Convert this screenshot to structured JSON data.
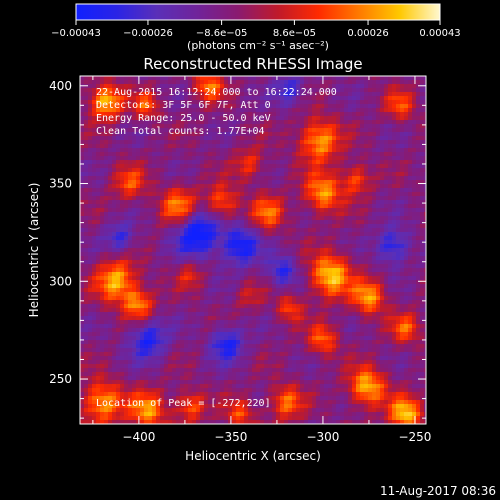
{
  "chart_data": {
    "type": "heatmap",
    "title": "Reconstructed RHESSI Image",
    "xlabel": "Heliocentric X (arcsec)",
    "ylabel": "Heliocentric Y (arcsec)",
    "xlim": [
      -432,
      -244
    ],
    "ylim": [
      227,
      405
    ],
    "x_ticks": [
      -400,
      -350,
      -300,
      -250
    ],
    "x_tick_labels": [
      "−400",
      "−350",
      "−300",
      "−250"
    ],
    "y_ticks": [
      250,
      300,
      350,
      400
    ],
    "y_tick_labels": [
      "250",
      "300",
      "350",
      "400"
    ],
    "colorbar": {
      "label": "(photons cm⁻² s⁻¹ asec⁻²)",
      "range": [
        -0.00043,
        0.00043
      ],
      "ticks": [
        -0.00043,
        -0.00026,
        -8.6e-05,
        8.6e-05,
        0.00026,
        0.00043
      ],
      "tick_labels": [
        "−0.00043",
        "−0.00026",
        "−8.6e−05",
        "8.6e−05",
        "0.00026",
        "0.00043"
      ],
      "colors": [
        "#1020ff",
        "#2a24e6",
        "#5a2fb8",
        "#70239a",
        "#8a1a70",
        "#c01a2a",
        "#ff2a00",
        "#ff7a00",
        "#ffc800",
        "#fff8d0"
      ]
    },
    "annotations": [
      "22-Aug-2015 16:12:24.000 to 16:22:24.000",
      "Detectors: 3F 5F 6F 7F, Att 0",
      "Energy Range: 25.0 - 50.0 keV",
      "Clean     Total counts: 1.77E+04"
    ],
    "peak_label": "Location of Peak = [-272,220]",
    "hotspots": [
      {
        "x": -412,
        "y": 300,
        "v": 0.0004,
        "r": 11
      },
      {
        "x": -400,
        "y": 288,
        "v": 0.00032,
        "r": 8
      },
      {
        "x": -420,
        "y": 238,
        "v": 0.00038,
        "r": 11
      },
      {
        "x": -395,
        "y": 234,
        "v": 0.00035,
        "r": 10
      },
      {
        "x": -372,
        "y": 236,
        "v": 0.00028,
        "r": 8
      },
      {
        "x": -418,
        "y": 392,
        "v": 0.00042,
        "r": 9
      },
      {
        "x": -396,
        "y": 390,
        "v": 0.00026,
        "r": 7
      },
      {
        "x": -362,
        "y": 400,
        "v": 0.0003,
        "r": 8
      },
      {
        "x": -405,
        "y": 350,
        "v": 0.00024,
        "r": 9
      },
      {
        "x": -378,
        "y": 338,
        "v": 0.00034,
        "r": 10
      },
      {
        "x": -355,
        "y": 340,
        "v": 0.0003,
        "r": 9
      },
      {
        "x": -330,
        "y": 335,
        "v": 0.00028,
        "r": 9
      },
      {
        "x": -340,
        "y": 360,
        "v": 0.00022,
        "r": 8
      },
      {
        "x": -302,
        "y": 372,
        "v": 0.00038,
        "r": 11
      },
      {
        "x": -300,
        "y": 345,
        "v": 0.00036,
        "r": 10
      },
      {
        "x": -282,
        "y": 352,
        "v": 0.00026,
        "r": 8
      },
      {
        "x": -296,
        "y": 303,
        "v": 0.00043,
        "r": 11
      },
      {
        "x": -275,
        "y": 292,
        "v": 0.00036,
        "r": 9
      },
      {
        "x": -318,
        "y": 286,
        "v": 0.00024,
        "r": 7
      },
      {
        "x": -300,
        "y": 270,
        "v": 0.00028,
        "r": 8
      },
      {
        "x": -276,
        "y": 246,
        "v": 0.0004,
        "r": 10
      },
      {
        "x": -255,
        "y": 232,
        "v": 0.00042,
        "r": 9
      },
      {
        "x": -320,
        "y": 238,
        "v": 0.0003,
        "r": 9
      },
      {
        "x": -345,
        "y": 232,
        "v": 0.00024,
        "r": 8
      },
      {
        "x": -255,
        "y": 276,
        "v": 0.00026,
        "r": 8
      },
      {
        "x": -258,
        "y": 390,
        "v": 0.00024,
        "r": 8
      },
      {
        "x": -372,
        "y": 303,
        "v": 0.00018,
        "r": 7
      },
      {
        "x": -340,
        "y": 292,
        "v": 0.00014,
        "r": 7
      }
    ],
    "coldspots": [
      {
        "x": -368,
        "y": 325,
        "v": -0.0004,
        "r": 12
      },
      {
        "x": -345,
        "y": 318,
        "v": -0.00034,
        "r": 10
      },
      {
        "x": -395,
        "y": 270,
        "v": -0.0003,
        "r": 10
      },
      {
        "x": -352,
        "y": 268,
        "v": -0.0003,
        "r": 9
      },
      {
        "x": -322,
        "y": 305,
        "v": -0.00026,
        "r": 8
      },
      {
        "x": -262,
        "y": 318,
        "v": -0.0003,
        "r": 9
      },
      {
        "x": -318,
        "y": 398,
        "v": -0.00024,
        "r": 8
      },
      {
        "x": -410,
        "y": 322,
        "v": -0.00024,
        "r": 8
      }
    ]
  },
  "footer": {
    "timestamp": "11-Aug-2017 08:36"
  }
}
